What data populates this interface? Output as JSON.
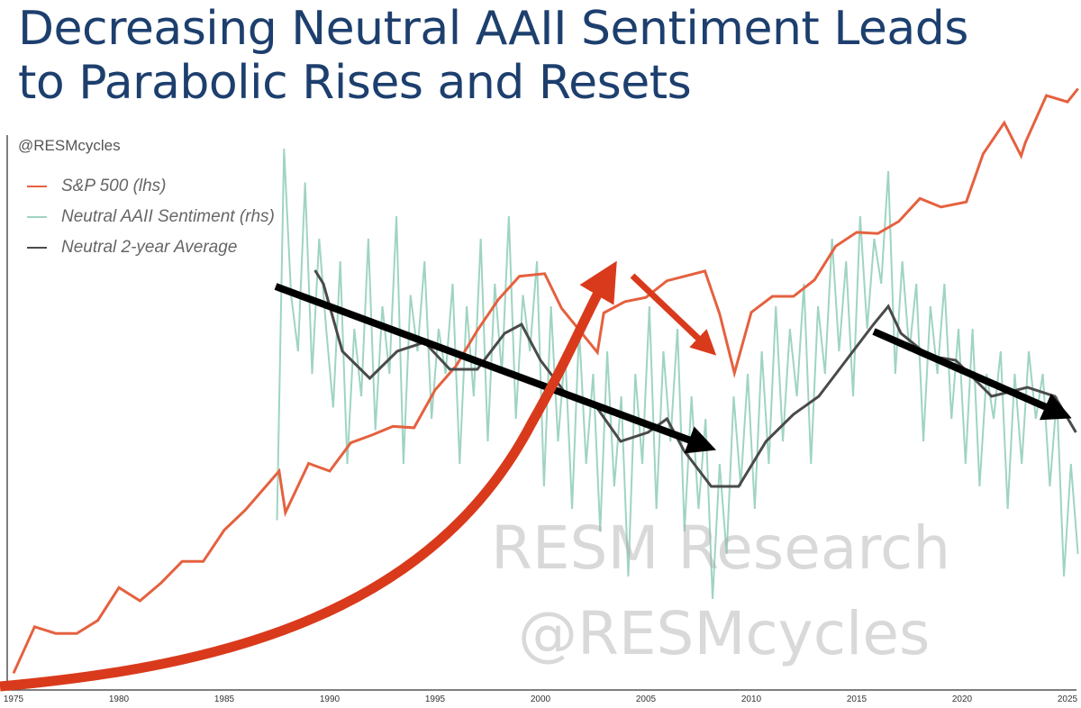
{
  "title_line1": "Decreasing Neutral AAII Sentiment Leads",
  "title_line2": "to Parabolic Rises and Resets",
  "handle": "@RESMcycles",
  "watermark": {
    "line1": "RESM Research",
    "line2": "@RESMcycles"
  },
  "chart_data": {
    "type": "line",
    "title": "Decreasing Neutral AAII Sentiment Leads to Parabolic Rises and Resets",
    "x_ticks": [
      "1975",
      "1980",
      "1985",
      "1990",
      "1995",
      "2000",
      "2005",
      "2010",
      "2015",
      "2020",
      "2025"
    ],
    "xlim": [
      1975,
      2025.5
    ],
    "lhs_scale": "log",
    "lhs_ylim": [
      62,
      6800
    ],
    "rhs_ylim": [
      10,
      60
    ],
    "grid": false,
    "legend_position": "top-left",
    "colors": {
      "sp500": "#e5613f",
      "neutral": "#9fd4c2",
      "avg": "#4a4a4a",
      "arrow_black": "#000000",
      "arrow_red": "#d93a1c",
      "title": "#1d3f6e"
    },
    "series": [
      {
        "name": "S&P 500 (lhs)",
        "axis": "lhs",
        "x": [
          1975,
          1976,
          1977,
          1978,
          1979,
          1980,
          1981,
          1982,
          1983,
          1984,
          1985,
          1986,
          1987.6,
          1987.9,
          1989,
          1990,
          1991,
          1992,
          1993,
          1994,
          1995,
          1996,
          1997,
          1998,
          1999,
          2000.2,
          2001,
          2002.7,
          2003,
          2004,
          2005,
          2006,
          2007.8,
          2008.5,
          2009.2,
          2010,
          2011,
          2012,
          2013,
          2014,
          2015,
          2016,
          2017,
          2018,
          2019,
          2020.2,
          2021,
          2022,
          2022.8,
          2023,
          2024,
          2025,
          2025.5
        ],
        "values": [
          70,
          100,
          95,
          95,
          105,
          135,
          122,
          140,
          165,
          165,
          210,
          245,
          330,
          240,
          350,
          330,
          410,
          435,
          465,
          460,
          615,
          740,
          970,
          1230,
          1470,
          1500,
          1150,
          820,
          1110,
          1210,
          1250,
          1420,
          1530,
          1100,
          700,
          1115,
          1260,
          1260,
          1430,
          1850,
          2060,
          2040,
          2240,
          2670,
          2500,
          2600,
          3760,
          4770,
          3700,
          4100,
          5880,
          5600,
          6200
        ]
      },
      {
        "name": "Neutral AAII Sentiment (rhs)",
        "axis": "rhs",
        "start_year": 1987.5,
        "step_years": 0.3333,
        "values": [
          25,
          58,
          45,
          40,
          55,
          38,
          50,
          42,
          35,
          48,
          30,
          42,
          36,
          50,
          33,
          44,
          38,
          52,
          30,
          45,
          40,
          48,
          34,
          42,
          38,
          46,
          30,
          44,
          36,
          50,
          32,
          46,
          38,
          52,
          34,
          45,
          40,
          48,
          28,
          44,
          32,
          40,
          26,
          42,
          30,
          38,
          24,
          40,
          28,
          36,
          20,
          38,
          30,
          44,
          26,
          40,
          32,
          42,
          24,
          36,
          26,
          34,
          18,
          30,
          22,
          36,
          28,
          38,
          26,
          40,
          30,
          44,
          32,
          42,
          36,
          46,
          30,
          44,
          38,
          50,
          40,
          48,
          36,
          52,
          42,
          50,
          46,
          56,
          38,
          48,
          40,
          46,
          32,
          44,
          38,
          46,
          34,
          42,
          30,
          42,
          28,
          38,
          34,
          40,
          26,
          38,
          30,
          40,
          34,
          38,
          28,
          36,
          20,
          30,
          22
        ]
      },
      {
        "name": "Neutral 2-year Average",
        "axis": "rhs",
        "x": [
          1989.3,
          1989.7,
          1990.6,
          1991.9,
          1993.2,
          1994.5,
          1995.7,
          1997,
          1998.3,
          1999.1,
          2000,
          2001.3,
          2002.6,
          2003.8,
          2005.1,
          2006,
          2006.8,
          2008.1,
          2009.4,
          2010.7,
          2012,
          2013.2,
          2014.5,
          2015.8,
          2016.5,
          2017.1,
          2018.4,
          2019.7,
          2021.4,
          2023.1,
          2024.4,
          2025.4
        ],
        "values": [
          47.2,
          46,
          40,
          37.6,
          40,
          40.8,
          38.4,
          38.4,
          41.6,
          42.4,
          39.2,
          36,
          35.2,
          32,
          32.8,
          34,
          31.2,
          28,
          28,
          32,
          34.4,
          36,
          39.2,
          42.4,
          44,
          41.6,
          39.6,
          39.2,
          36,
          36.8,
          36,
          32.8
        ]
      }
    ]
  }
}
